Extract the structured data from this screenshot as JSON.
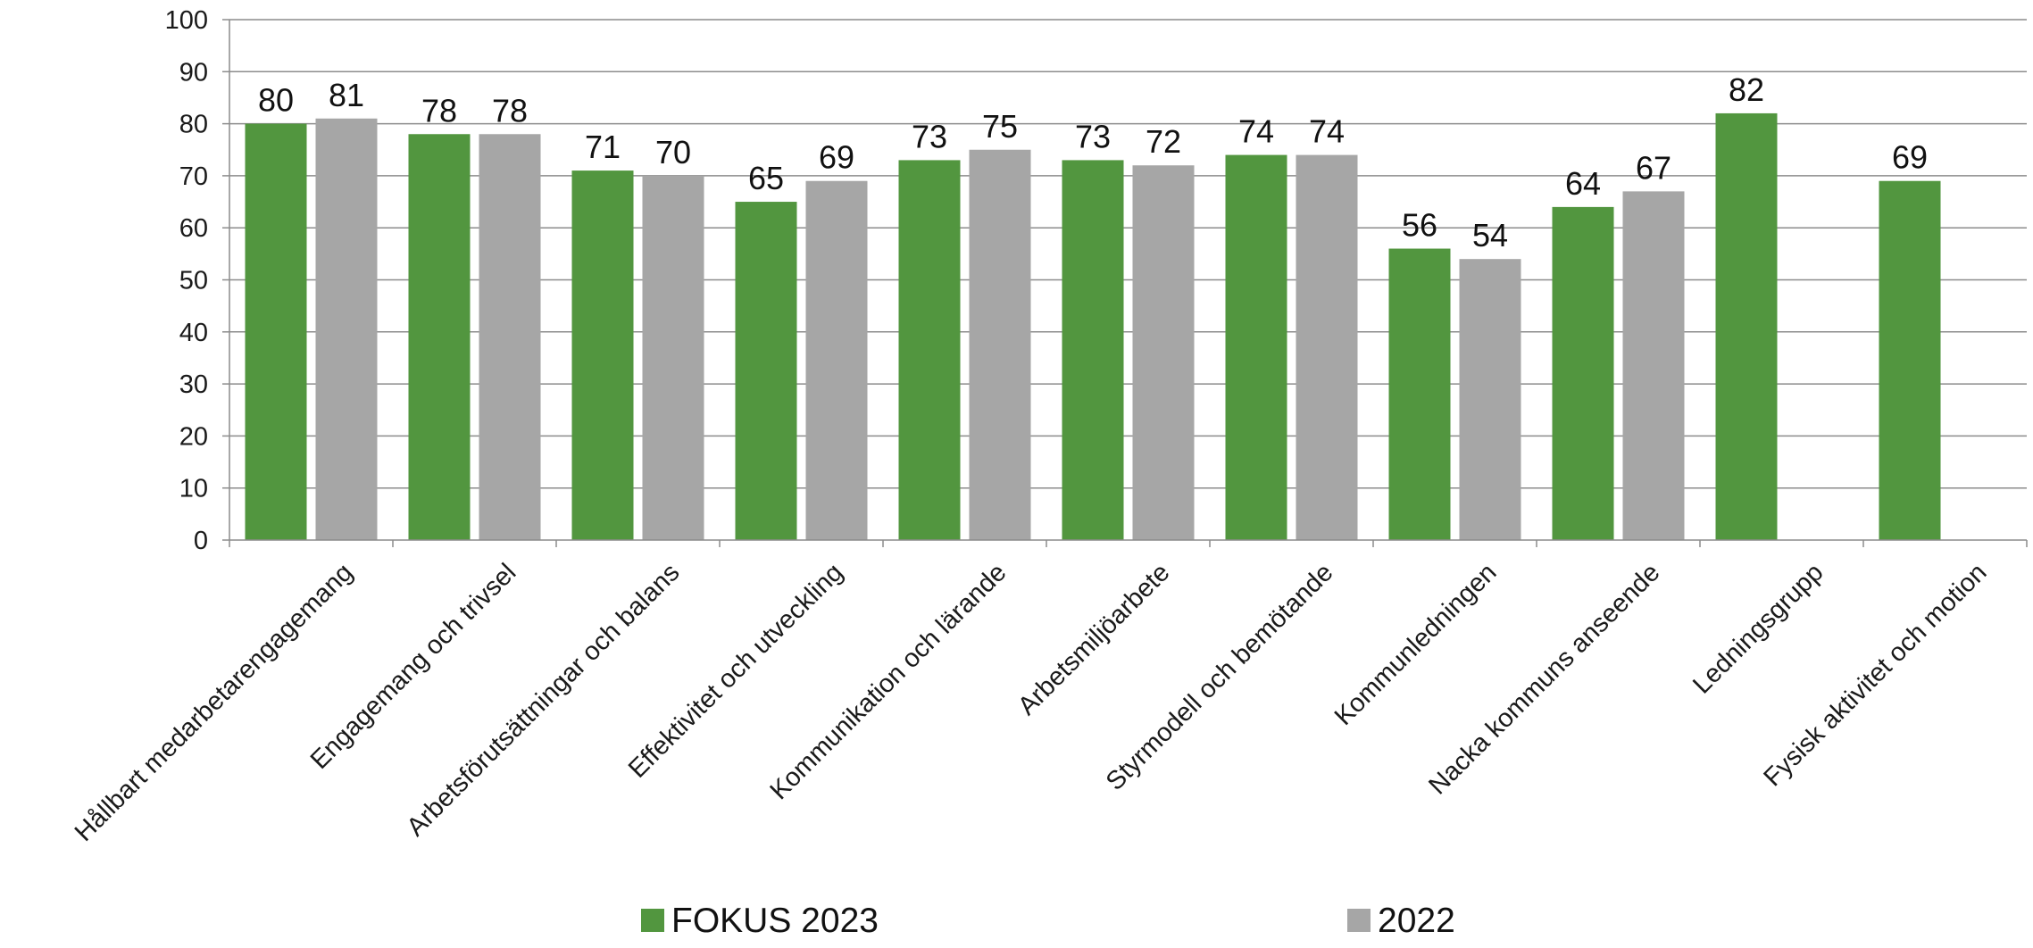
{
  "chart_data": {
    "type": "bar",
    "categories": [
      "Hållbart medarbetarengagemang",
      "Engagemang och trivsel",
      "Arbetsförutsättningar och balans",
      "Effektivitet och utveckling",
      "Kommunikation och lärande",
      "Arbetsmiljöarbete",
      "Styrmodell och bemötande",
      "Kommunledningen",
      "Nacka kommuns anseende",
      "Ledningsgrupp",
      "Fysisk aktivitet och motion"
    ],
    "series": [
      {
        "name": "FOKUS 2023",
        "color": "#52963f",
        "values": [
          80,
          78,
          71,
          65,
          73,
          73,
          74,
          56,
          64,
          82,
          69
        ]
      },
      {
        "name": "2022",
        "color": "#a6a6a6",
        "values": [
          81,
          78,
          70,
          69,
          75,
          72,
          74,
          54,
          67,
          null,
          null
        ]
      }
    ],
    "ylim": [
      0,
      100
    ],
    "yticks": [
      0,
      10,
      20,
      30,
      40,
      50,
      60,
      70,
      80,
      90,
      100
    ],
    "grid": true,
    "legend": "bottom",
    "title": "",
    "xlabel": "",
    "ylabel": ""
  }
}
